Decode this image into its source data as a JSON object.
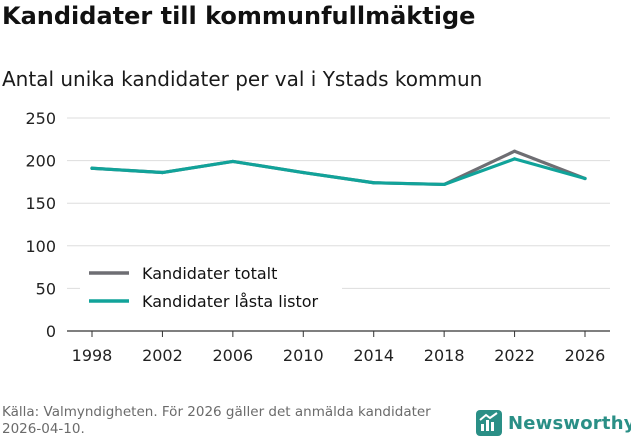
{
  "title": "Kandidater till kommunfullmäktige",
  "subtitle": "Antal unika kandidater per val i Ystads kommun",
  "source": "Källa: Valmyndigheten. För 2026 gäller det anmälda kandidater 2026-04-10.",
  "brand": {
    "name": "Newsworthy",
    "icon": "newsworthy-logo-icon"
  },
  "colors": {
    "total": "#6e6e73",
    "locked": "#11a39a",
    "grid": "#dddddd",
    "axis": "#333333"
  },
  "chart_data": {
    "type": "line",
    "title": "Kandidater till kommunfullmäktige",
    "subtitle": "Antal unika kandidater per val i Ystads kommun",
    "xlabel": "",
    "ylabel": "",
    "x": [
      1998,
      2002,
      2006,
      2010,
      2014,
      2018,
      2022,
      2026
    ],
    "x_ticks": [
      "1998",
      "2002",
      "2006",
      "2010",
      "2014",
      "2018",
      "2022",
      "2026"
    ],
    "y_ticks": [
      "0",
      "50",
      "100",
      "150",
      "200",
      "250"
    ],
    "ylim": [
      0,
      250
    ],
    "grid": true,
    "legend_position": "bottom-left",
    "series": [
      {
        "name": "Kandidater totalt",
        "color": "#6e6e73",
        "values": [
          191,
          186,
          199,
          186,
          174,
          172,
          211,
          179
        ]
      },
      {
        "name": "Kandidater låsta listor",
        "color": "#11a39a",
        "values": [
          191,
          186,
          199,
          186,
          174,
          172,
          202,
          179
        ]
      }
    ]
  }
}
